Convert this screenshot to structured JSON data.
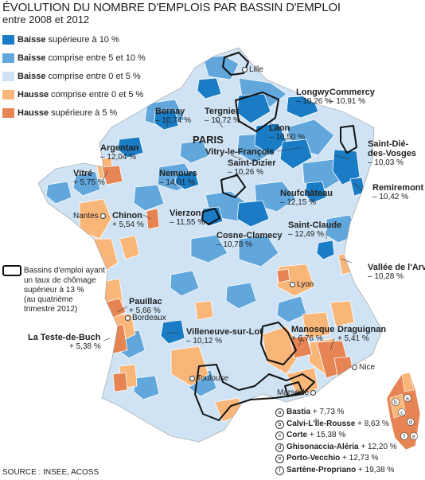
{
  "header": {
    "title": "ÉVOLUTION DU NOMBRE D'EMPLOIS PAR BASSIN D'EMPLOI",
    "subtitle": "entre 2008 et 2012"
  },
  "colors": {
    "baisse_sup_10": "#1a7cc4",
    "baisse_5_10": "#62a7dc",
    "baisse_0_5": "#cfe3f4",
    "hausse_0_5": "#f9b679",
    "hausse_sup_5": "#e68453",
    "unemployment_outline": "#111111"
  },
  "legend": [
    {
      "bold": "Baisse",
      "rest": "supérieure à 10 %",
      "color_key": "baisse_sup_10"
    },
    {
      "bold": "Baisse",
      "rest": "comprise entre 5 et 10 %",
      "color_key": "baisse_5_10"
    },
    {
      "bold": "Baisse",
      "rest": "comprise entre 0 et 5 %",
      "color_key": "baisse_0_5"
    },
    {
      "bold": "Hausse",
      "rest": "comprise entre 0 et 5 %",
      "color_key": "hausse_0_5"
    },
    {
      "bold": "Hausse",
      "rest": "supérieure à 5 %",
      "color_key": "hausse_sup_5"
    }
  ],
  "unemployment_legend": {
    "line1": "Bassins d'emploi ayant",
    "line2": "un taux de chômage",
    "line3": "supérieur à 13 %",
    "line4": "(au quatrième",
    "line5": "trimestre 2012)"
  },
  "cities": {
    "paris": "PARIS",
    "lille": "Lille",
    "nantes": "Nantes",
    "bordeaux": "Bordeaux",
    "lyon": "Lyon",
    "toulouse": "Toulouse",
    "marseille": "Marseille",
    "nice": "Nice"
  },
  "basins": [
    {
      "name": "Bernay",
      "value": "– 10,74 %"
    },
    {
      "name": "Tergnier",
      "value": "– 10,72 %"
    },
    {
      "name": "Longwy",
      "value": "– 10,26 %"
    },
    {
      "name": "Commercy",
      "value": "– 10,91 %"
    },
    {
      "name": "Laon",
      "value": "– 10,50 %"
    },
    {
      "name": "Argentan",
      "value": "– 12,04 %"
    },
    {
      "name": "Vitry-le-François",
      "value": ""
    },
    {
      "name": "Saint-Dizier",
      "value": "– 10,26 %"
    },
    {
      "name": "Saint-Dié-des-Vosges",
      "value": "– 10,03 %"
    },
    {
      "name": "Vitré",
      "value": "+ 5,75 %"
    },
    {
      "name": "Nemours",
      "value": "– 14,01 %"
    },
    {
      "name": "Remiremont",
      "value": "– 10,42 %"
    },
    {
      "name": "Neufchâteau",
      "value": "– 12,15 %"
    },
    {
      "name": "Chinon",
      "value": "+ 5,54 %"
    },
    {
      "name": "Vierzon",
      "value": "– 11,55 %"
    },
    {
      "name": "Saint-Claude",
      "value": "– 12,49 %"
    },
    {
      "name": "Cosne-Clamecy",
      "value": "– 10,78 %"
    },
    {
      "name": "Vallée de l'Arve",
      "value": "– 10,28 %"
    },
    {
      "name": "Pauillac",
      "value": "+ 5,66 %"
    },
    {
      "name": "La Teste-de-Buch",
      "value": "+ 5,38 %"
    },
    {
      "name": "Villeneuve-sur-Lot",
      "value": "– 10,12 %"
    },
    {
      "name": "Manosque",
      "value": "+ 6,76 %"
    },
    {
      "name": "Draguignan",
      "value": "+ 5,41 %"
    }
  ],
  "corsica": [
    {
      "key": "a",
      "name": "Bastia",
      "value": "+ 7,73 %"
    },
    {
      "key": "b",
      "name": "Calvi-L'Île-Rousse",
      "value": "+ 8,63 %"
    },
    {
      "key": "c",
      "name": "Corte",
      "value": "+ 15,38 %"
    },
    {
      "key": "d",
      "name": "Ghisonaccia-Aléria",
      "value": "+ 12,20 %"
    },
    {
      "key": "e",
      "name": "Porto-Vecchio",
      "value": "+ 12,73 %"
    },
    {
      "key": "f",
      "name": "Sartène-Propriano",
      "value": "+ 19,38 %"
    }
  ],
  "source": "SOURCE : INSEE, ACOSS"
}
